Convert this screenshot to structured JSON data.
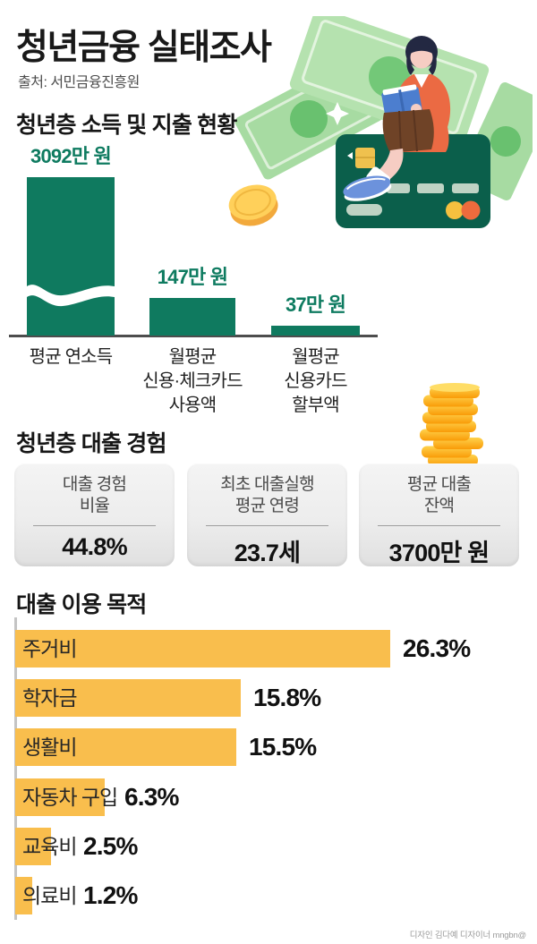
{
  "meta": {
    "title": "청년금융 실태조사",
    "source": "출처: 서민금융진흥원",
    "credit": "디자인 김다예 디자이너 mngbn@"
  },
  "colors": {
    "primary_green": "#0F7A5F",
    "green_text": "#0E7B60",
    "accent_yellow": "#F9BE4D",
    "card_green": "#0B5F4B",
    "gold": "#FFC23A"
  },
  "chart_data": [
    {
      "id": "income_spending",
      "type": "bar",
      "orientation": "vertical",
      "title": "청년층 소득 및 지출 현황",
      "unit": "만 원",
      "categories": [
        "평균 연소득",
        "월평균 신용·체크카드 사용액",
        "월평균 신용카드 할부액"
      ],
      "category_lines": [
        [
          "평균 연소득"
        ],
        [
          "월평균",
          "신용·체크카드",
          "사용액"
        ],
        [
          "월평균",
          "신용카드",
          "할부액"
        ]
      ],
      "values": [
        3092,
        147,
        37
      ],
      "value_labels": [
        "3092만 원",
        "147만 원",
        "37만 원"
      ],
      "axis_break_bar_index": 0,
      "bar_color": "#0F7A5F",
      "grid": false,
      "legend": false
    },
    {
      "id": "loan_experience",
      "type": "table",
      "title": "청년층 대출 경험",
      "cards": [
        {
          "label": "대출 경험 비율",
          "label_lines": [
            "대출 경험",
            "비율"
          ],
          "value": "44.8%"
        },
        {
          "label": "최초 대출실행 평균 연령",
          "label_lines": [
            "최초 대출실행",
            "평균 연령"
          ],
          "value": "23.7세"
        },
        {
          "label": "평균 대출 잔액",
          "label_lines": [
            "평균 대출",
            "잔액"
          ],
          "value": "3700만 원"
        }
      ]
    },
    {
      "id": "loan_purpose",
      "type": "bar",
      "orientation": "horizontal",
      "title": "대출 이용 목적",
      "unit": "%",
      "categories": [
        "주거비",
        "학자금",
        "생활비",
        "자동차 구입",
        "교육비",
        "의료비"
      ],
      "values": [
        26.3,
        15.8,
        15.5,
        6.3,
        2.5,
        1.2
      ],
      "value_labels": [
        "26.3%",
        "15.8%",
        "15.5%",
        "6.3%",
        "2.5%",
        "1.2%"
      ],
      "bar_color": "#F9BE4D",
      "grid": false,
      "legend": false
    }
  ]
}
